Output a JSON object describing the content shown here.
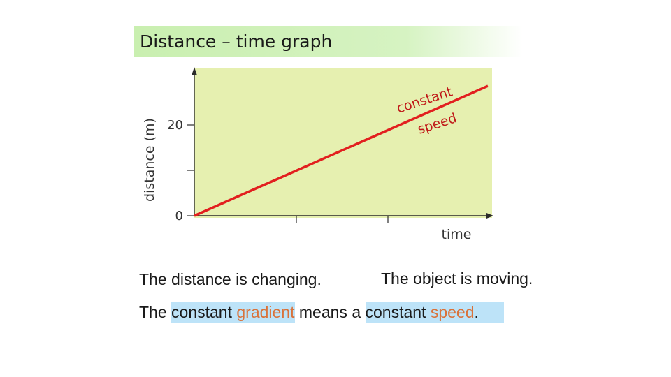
{
  "slide": {
    "title": "Distance – time  graph",
    "caption_left": "The distance is changing.",
    "caption_right": "The object is moving.",
    "sentence": {
      "w1": "The ",
      "w2": "constant ",
      "w3": "gradient",
      "w4": " means a ",
      "w5": "constant ",
      "w6": "speed",
      "w7": "."
    }
  },
  "colors": {
    "plot_bg": "#e6f0b0",
    "line": "#e21f1f",
    "annotation": "#c01818",
    "highlight": "#bde3f8",
    "emphasis": "#d9723a"
  },
  "chart_data": {
    "type": "line",
    "xlabel": "time",
    "ylabel": "distance (m)",
    "y_ticks": [
      {
        "value": 0,
        "label": "0"
      },
      {
        "value": 10,
        "label": ""
      },
      {
        "value": 20,
        "label": "20"
      }
    ],
    "x_ticks": [
      {
        "value": 0,
        "label": ""
      },
      {
        "value": 1,
        "label": ""
      },
      {
        "value": 2,
        "label": ""
      }
    ],
    "xlim": [
      0,
      3
    ],
    "ylim": [
      0,
      32
    ],
    "series": [
      {
        "values": [
          {
            "x": 0,
            "y": 0
          },
          {
            "x": 3,
            "y": 28.6
          }
        ]
      }
    ],
    "annotation": [
      "constant",
      "speed"
    ],
    "grid": false
  }
}
